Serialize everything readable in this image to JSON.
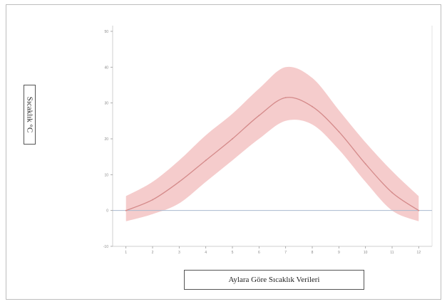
{
  "chart_data": {
    "type": "line",
    "title": "",
    "xlabel": "Aylara Göre Sıcaklık Verileri",
    "ylabel": "Sıcaklık °C",
    "x": [
      1,
      2,
      3,
      4,
      5,
      6,
      7,
      8,
      9,
      10,
      11,
      12
    ],
    "series": [
      {
        "values": [
          0.0,
          3.0,
          8.0,
          14.0,
          20.0,
          26.5,
          31.5,
          29.0,
          22.0,
          13.0,
          5.0,
          0.0
        ]
      }
    ],
    "band": {
      "lower": [
        -3.0,
        -1.0,
        2.0,
        8.0,
        14.0,
        20.0,
        25.0,
        24.0,
        17.0,
        8.0,
        0.0,
        -3.0
      ],
      "upper": [
        4.0,
        8.0,
        14.0,
        21.0,
        27.0,
        34.0,
        40.0,
        37.0,
        28.0,
        19.0,
        11.0,
        4.0
      ]
    },
    "baseline": 0,
    "xlim": [
      0.5,
      12.5
    ],
    "ylim": [
      -10,
      50
    ],
    "yticks": [
      -10,
      0,
      10,
      20,
      30,
      40,
      50
    ],
    "grid": false,
    "colors": {
      "band": "#f3c3c3",
      "line": "#d48a8a",
      "baseline": "#a9b8cf",
      "axis": "#cfcfcf"
    }
  }
}
